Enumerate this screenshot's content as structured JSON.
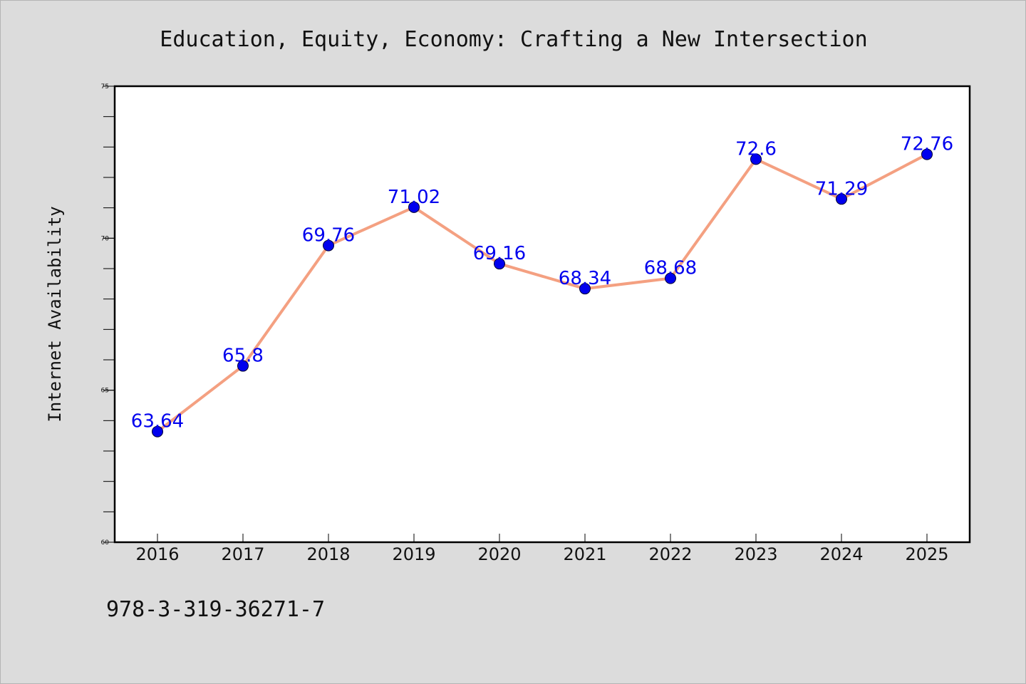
{
  "chart_data": {
    "type": "line",
    "title": "Education, Equity, Economy: Crafting a New Intersection",
    "xlabel": "",
    "ylabel": "Internet Availability",
    "x": [
      "2016",
      "2017",
      "2018",
      "2019",
      "2020",
      "2021",
      "2022",
      "2023",
      "2024",
      "2025"
    ],
    "series": [
      {
        "values": [
          63.64,
          65.8,
          69.76,
          71.02,
          69.16,
          68.34,
          68.68,
          72.6,
          71.29,
          72.76
        ],
        "labels": [
          "63.64",
          "65.8",
          "69.76",
          "71.02",
          "69.16",
          "68.34",
          "68.68",
          "72.6",
          "71.29",
          "72.76"
        ]
      }
    ],
    "ylim": [
      60,
      75
    ],
    "yticks": [
      "60",
      "65",
      "70",
      "75"
    ],
    "grid": false,
    "legend": "none",
    "colors": {
      "line": "#f4a081",
      "marker": "#0000ee",
      "label": "#0000ee",
      "plot_background": "#ffffff",
      "page_background": "#dcdcdc"
    }
  },
  "footer": {
    "isbn": "978-3-319-36271-7"
  }
}
